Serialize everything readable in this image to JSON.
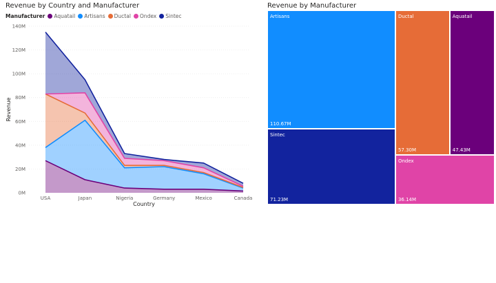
{
  "colors": {
    "Aquatail": "#6b007b",
    "Artisans": "#118dff",
    "Ductal": "#e66c37",
    "Ondex": "#e044a7",
    "Sintec": "#12239e"
  },
  "chart_data": [
    {
      "type": "area",
      "stacked": true,
      "title": "Revenue by Country and Manufacturer",
      "xlabel": "Country",
      "ylabel": "Revenue",
      "legend_title": "Manufacturer",
      "legend": [
        "Aquatail",
        "Artisans",
        "Ductal",
        "Ondex",
        "Sintec"
      ],
      "categories": [
        "USA",
        "Japan",
        "Nigeria",
        "Germany",
        "Mexico",
        "Canada"
      ],
      "yticks": [
        "0M",
        "20M",
        "40M",
        "60M",
        "80M",
        "100M",
        "120M",
        "140M"
      ],
      "ylim": [
        0,
        140
      ],
      "series": [
        {
          "name": "Aquatail",
          "values": [
            27,
            11,
            4,
            3,
            3,
            1.5
          ]
        },
        {
          "name": "Artisans",
          "values": [
            11,
            50,
            17,
            19,
            13,
            2.5
          ]
        },
        {
          "name": "Ductal",
          "values": [
            45,
            6,
            2,
            1,
            1,
            0.5
          ]
        },
        {
          "name": "Ondex",
          "values": [
            0,
            17,
            6,
            4,
            4,
            1
          ]
        },
        {
          "name": "Sintec",
          "values": [
            52,
            11,
            4,
            1,
            4,
            2.5
          ]
        }
      ]
    },
    {
      "type": "treemap",
      "title": "Revenue by Manufacturer",
      "items": [
        {
          "name": "Artisans",
          "label": "110.67M",
          "value": 110.67
        },
        {
          "name": "Sintec",
          "label": "71.23M",
          "value": 71.23
        },
        {
          "name": "Ductal",
          "label": "57.30M",
          "value": 57.3
        },
        {
          "name": "Aquatail",
          "label": "47.43M",
          "value": 47.43
        },
        {
          "name": "Ondex",
          "label": "36.14M",
          "value": 36.14
        }
      ]
    }
  ]
}
